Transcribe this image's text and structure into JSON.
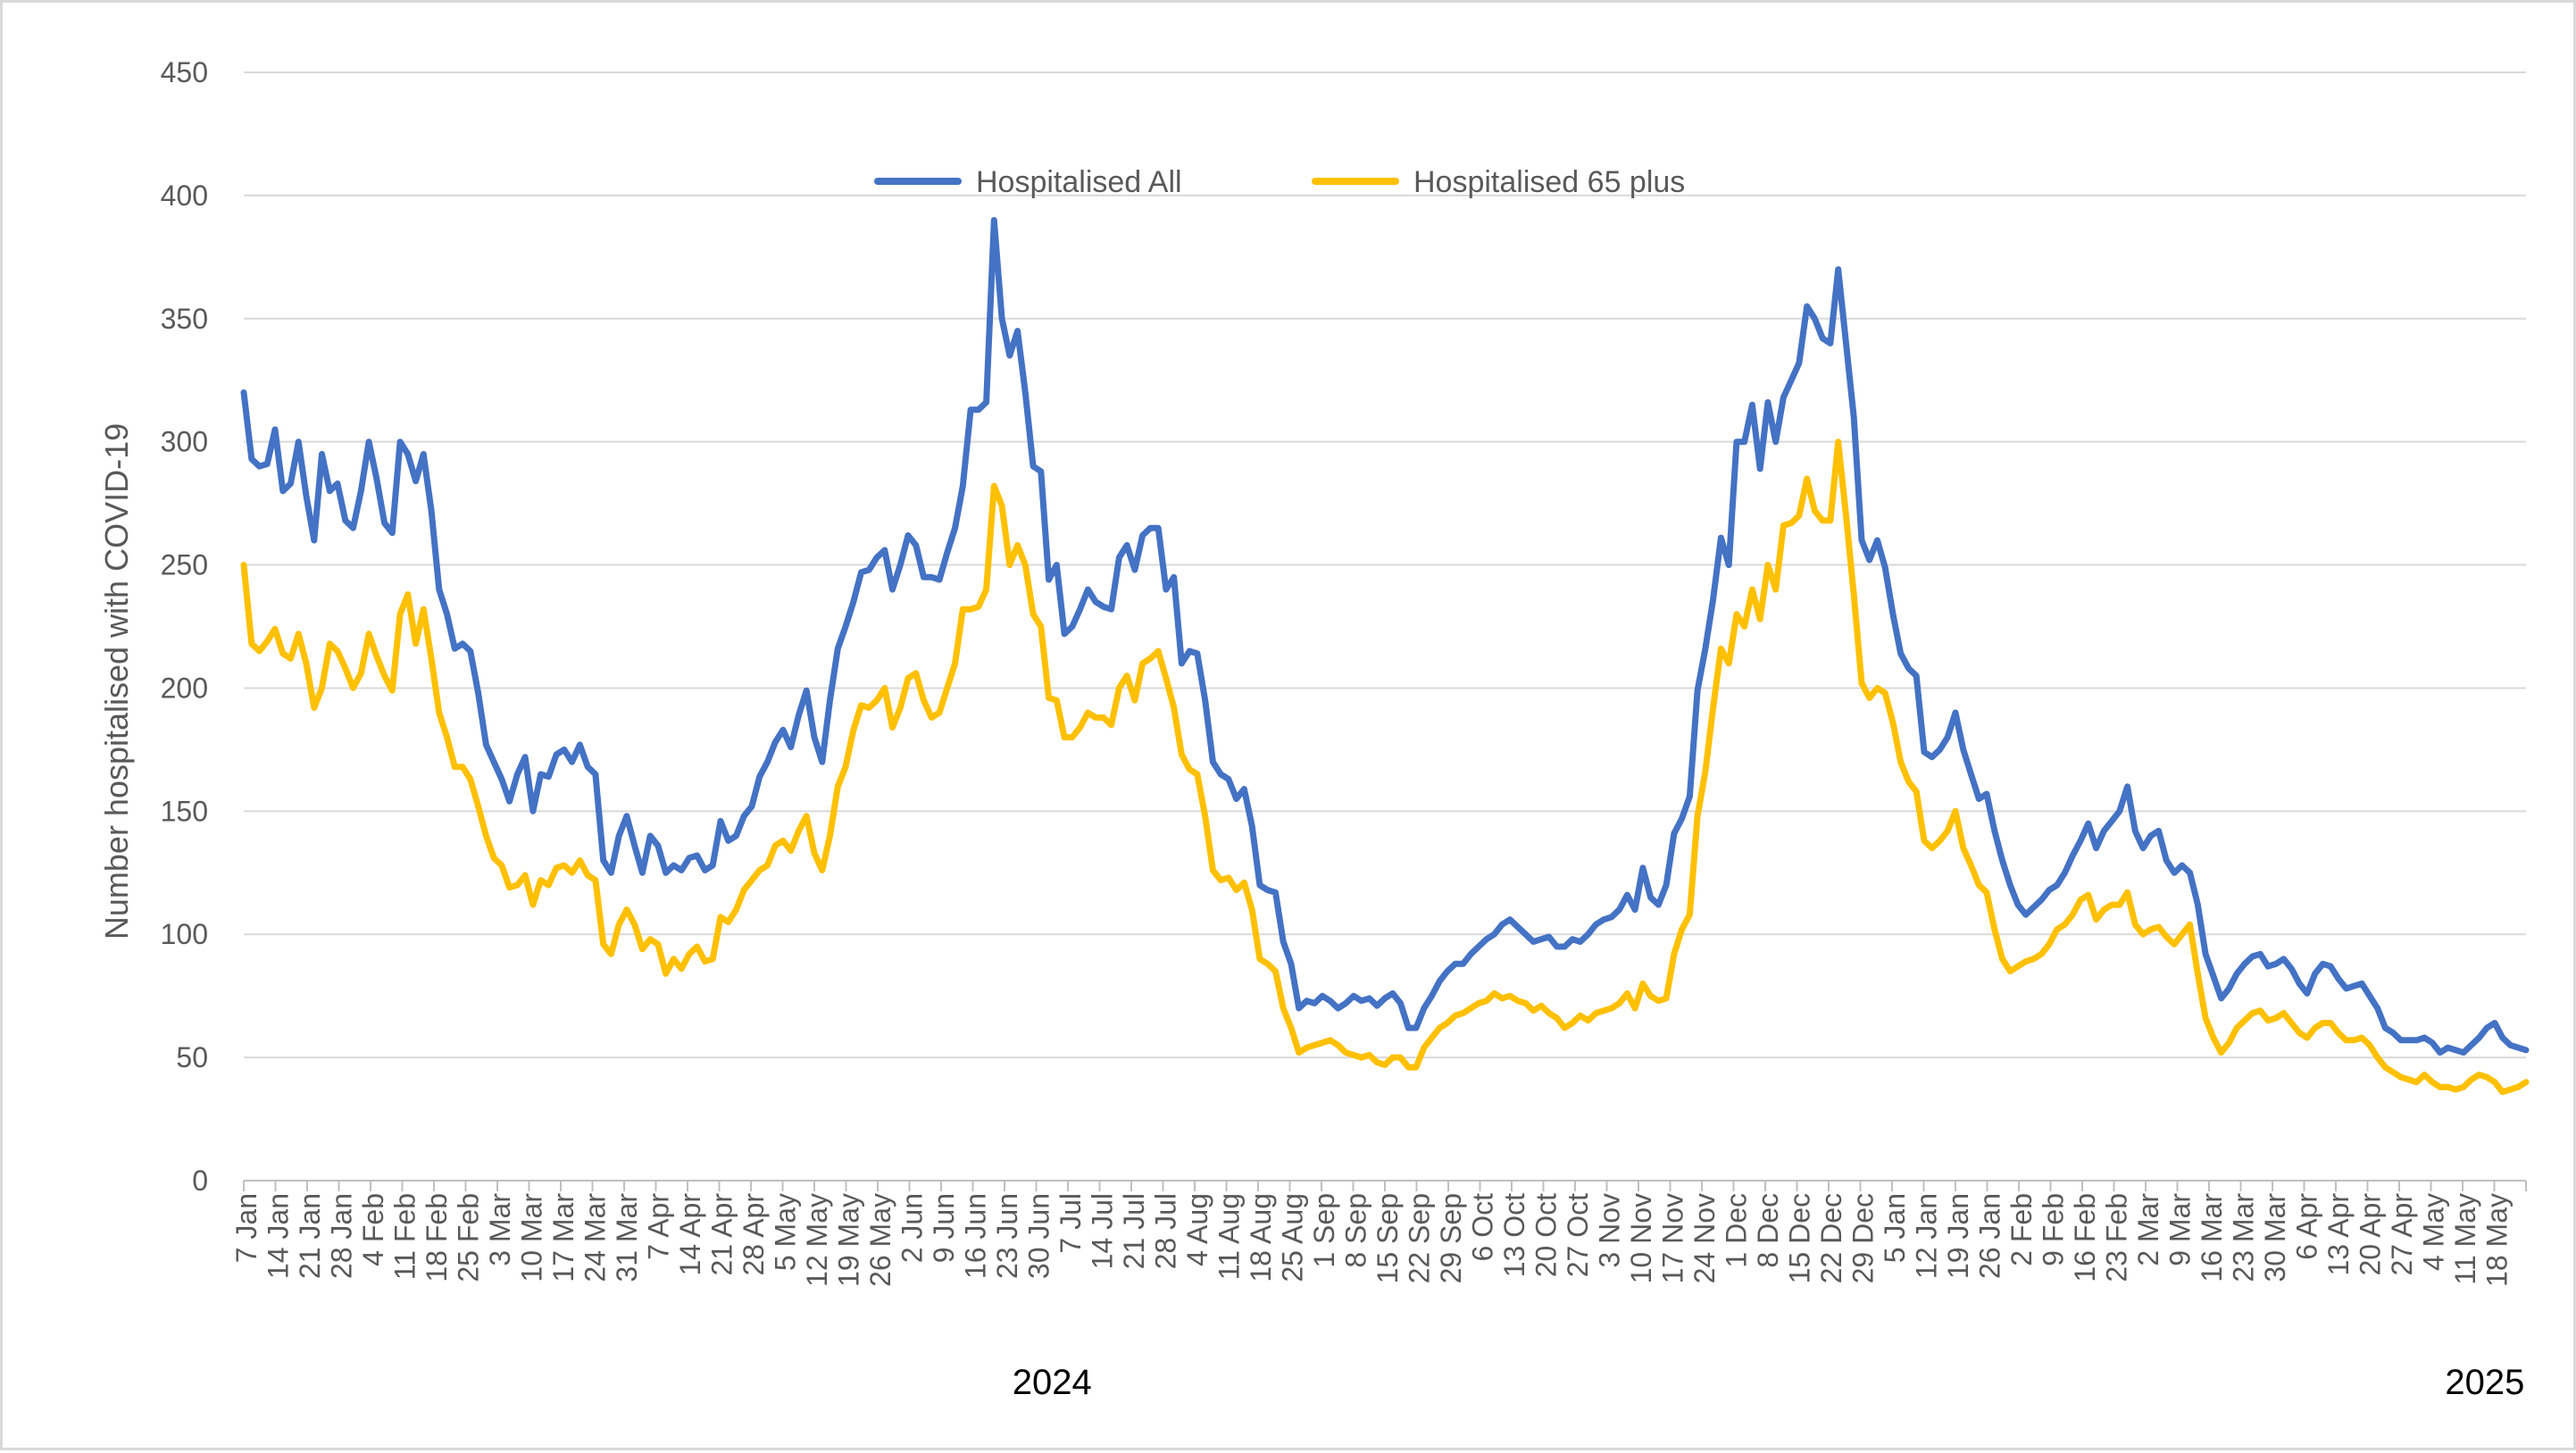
{
  "chart_data": {
    "type": "line",
    "title": "",
    "ylabel": "Number hospitalised with COVID-19",
    "ylim": [
      0,
      450
    ],
    "y_ticks": [
      0,
      50,
      100,
      150,
      200,
      250,
      300,
      350,
      400,
      450
    ],
    "grid": true,
    "legend_position": "top-center",
    "x_tick_labels": [
      "7 Jan",
      "14 Jan",
      "21 Jan",
      "28 Jan",
      "4 Feb",
      "11 Feb",
      "18 Feb",
      "25 Feb",
      "3 Mar",
      "10 Mar",
      "17 Mar",
      "24 Mar",
      "31 Mar",
      "7 Apr",
      "14 Apr",
      "21 Apr",
      "28 Apr",
      "5 May",
      "12 May",
      "19 May",
      "26 May",
      "2 Jun",
      "9 Jun",
      "16 Jun",
      "23 Jun",
      "30 Jun",
      "7 Jul",
      "14 Jul",
      "21 Jul",
      "28 Jul",
      "4 Aug",
      "11 Aug",
      "18 Aug",
      "25 Aug",
      "1 Sep",
      "8 Sep",
      "15 Sep",
      "22 Sep",
      "29 Sep",
      "6 Oct",
      "13 Oct",
      "20 Oct",
      "27 Oct",
      "3 Nov",
      "10 Nov",
      "17 Nov",
      "24 Nov",
      "1 Dec",
      "8 Dec",
      "15 Dec",
      "22 Dec",
      "29 Dec",
      "5 Jan",
      "12 Jan",
      "19 Jan",
      "26 Jan",
      "2 Feb",
      "9 Feb",
      "16 Feb",
      "23 Feb",
      "2 Mar",
      "9 Mar",
      "16 Mar",
      "23 Mar",
      "30 Mar",
      "6 Apr",
      "13 Apr",
      "20 Apr",
      "27 Apr",
      "4 May",
      "11 May",
      "18 May"
    ],
    "year_labels": [
      {
        "text": "2024",
        "at_week": 25.5
      },
      {
        "text": "2025",
        "at_week": 70.7
      }
    ],
    "series": [
      {
        "name": "Hospitalised All",
        "color": "#4472c4",
        "values": [
          320,
          293,
          290,
          291,
          305,
          280,
          283,
          300,
          278,
          260,
          295,
          280,
          283,
          268,
          265,
          280,
          300,
          285,
          267,
          263,
          300,
          295,
          284,
          295,
          272,
          240,
          230,
          216,
          218,
          215,
          198,
          177,
          170,
          163,
          154,
          165,
          172,
          150,
          165,
          164,
          173,
          175,
          170,
          177,
          168,
          165,
          130,
          125,
          140,
          148,
          136,
          125,
          140,
          136,
          125,
          128,
          126,
          131,
          132,
          126,
          128,
          146,
          138,
          140,
          148,
          152,
          164,
          170,
          178,
          183,
          176,
          189,
          199,
          180,
          170,
          195,
          216,
          225,
          235,
          247,
          248,
          253,
          256,
          240,
          250,
          262,
          258,
          245,
          245,
          244,
          255,
          265,
          282,
          313,
          313,
          316,
          390,
          350,
          335,
          345,
          320,
          290,
          288,
          244,
          250,
          222,
          225,
          232,
          240,
          235,
          233,
          232,
          253,
          258,
          248,
          262,
          265,
          265,
          240,
          245,
          210,
          215,
          214,
          195,
          170,
          165,
          163,
          155,
          159,
          144,
          120,
          118,
          117,
          97,
          88,
          70,
          73,
          72,
          75,
          73,
          70,
          72,
          75,
          73,
          74,
          71,
          74,
          76,
          72,
          62,
          62,
          70,
          75,
          81,
          85,
          88,
          88,
          92,
          95,
          98,
          100,
          104,
          106,
          103,
          100,
          97,
          98,
          99,
          95,
          95,
          98,
          97,
          100,
          104,
          106,
          107,
          110,
          116,
          110,
          127,
          115,
          112,
          120,
          141,
          147,
          156,
          199,
          216,
          236,
          261,
          250,
          300,
          300,
          315,
          289,
          316,
          300,
          318,
          325,
          332,
          355,
          350,
          342,
          340,
          370,
          340,
          310,
          260,
          252,
          260,
          249,
          230,
          214,
          208,
          205,
          174,
          172,
          175,
          180,
          190,
          175,
          165,
          155,
          157,
          142,
          130,
          120,
          112,
          108,
          111,
          114,
          118,
          120,
          125,
          132,
          138,
          145,
          135,
          142,
          146,
          150,
          160,
          142,
          135,
          140,
          142,
          130,
          125,
          128,
          125,
          112,
          92,
          83,
          74,
          78,
          84,
          88,
          91,
          92,
          87,
          88,
          90,
          86,
          80,
          76,
          84,
          88,
          87,
          82,
          78,
          79,
          80,
          75,
          70,
          62,
          60,
          57,
          57,
          57,
          58,
          56,
          52,
          54,
          53,
          52,
          55,
          58,
          62,
          64,
          58,
          55,
          54,
          53
        ]
      },
      {
        "name": "Hospitalised 65 plus",
        "color": "#ffc000",
        "values": [
          250,
          218,
          215,
          219,
          224,
          214,
          212,
          222,
          210,
          192,
          200,
          218,
          215,
          208,
          200,
          206,
          222,
          213,
          205,
          199,
          230,
          238,
          218,
          232,
          212,
          190,
          180,
          168,
          168,
          163,
          152,
          140,
          131,
          128,
          119,
          120,
          124,
          112,
          122,
          120,
          127,
          128,
          125,
          130,
          124,
          122,
          96,
          92,
          104,
          110,
          104,
          94,
          98,
          96,
          84,
          90,
          86,
          92,
          95,
          89,
          90,
          107,
          105,
          110,
          118,
          122,
          126,
          128,
          136,
          138,
          134,
          142,
          148,
          133,
          126,
          140,
          160,
          168,
          183,
          193,
          192,
          195,
          200,
          184,
          192,
          204,
          206,
          195,
          188,
          190,
          200,
          210,
          232,
          232,
          233,
          240,
          282,
          274,
          250,
          258,
          250,
          230,
          225,
          196,
          195,
          180,
          180,
          184,
          190,
          188,
          188,
          185,
          200,
          205,
          195,
          210,
          212,
          215,
          204,
          192,
          173,
          167,
          165,
          148,
          126,
          122,
          123,
          118,
          121,
          110,
          90,
          88,
          85,
          70,
          62,
          52,
          54,
          55,
          56,
          57,
          55,
          52,
          51,
          50,
          51,
          48,
          47,
          50,
          50,
          46,
          46,
          54,
          58,
          62,
          64,
          67,
          68,
          70,
          72,
          73,
          76,
          74,
          75,
          73,
          72,
          69,
          71,
          68,
          66,
          62,
          64,
          67,
          65,
          68,
          69,
          70,
          72,
          76,
          70,
          80,
          75,
          73,
          74,
          92,
          102,
          108,
          148,
          166,
          192,
          216,
          210,
          230,
          225,
          240,
          228,
          250,
          240,
          266,
          267,
          270,
          285,
          272,
          268,
          268,
          300,
          270,
          238,
          202,
          196,
          200,
          198,
          186,
          170,
          162,
          158,
          138,
          135,
          138,
          142,
          150,
          135,
          128,
          120,
          117,
          102,
          90,
          85,
          87,
          89,
          90,
          92,
          96,
          102,
          104,
          108,
          114,
          116,
          106,
          110,
          112,
          112,
          117,
          104,
          100,
          102,
          103,
          99,
          96,
          100,
          104,
          84,
          66,
          58,
          52,
          56,
          62,
          65,
          68,
          69,
          65,
          66,
          68,
          64,
          60,
          58,
          62,
          64,
          64,
          60,
          57,
          57,
          58,
          55,
          50,
          46,
          44,
          42,
          41,
          40,
          43,
          40,
          38,
          38,
          37,
          38,
          41,
          43,
          42,
          40,
          36,
          37,
          38,
          40
        ]
      }
    ]
  }
}
